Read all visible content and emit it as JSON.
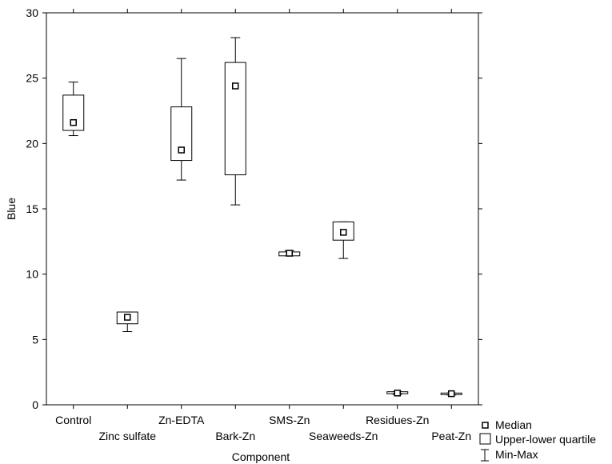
{
  "chart_data": {
    "type": "box",
    "xlabel": "Component",
    "ylabel": "Blue",
    "ylim": [
      0,
      30
    ],
    "yticks": [
      "0",
      "5",
      "10",
      "15",
      "20",
      "25",
      "30"
    ],
    "grid": false,
    "legend_position": "bottom-right",
    "categories": [
      "Control",
      "Zinc sulfate",
      "Zn-EDTA",
      "Bark-Zn",
      "SMS-Zn",
      "Seaweeds-Zn",
      "Residues-Zn",
      "Peat-Zn"
    ],
    "boxes": [
      {
        "category": "Control",
        "min": 20.6,
        "q1": 21.0,
        "median": 21.6,
        "q3": 23.7,
        "max": 24.7
      },
      {
        "category": "Zinc sulfate",
        "min": 5.6,
        "q1": 6.2,
        "median": 6.7,
        "q3": 7.1,
        "max": 7.1
      },
      {
        "category": "Zn-EDTA",
        "min": 17.2,
        "q1": 18.7,
        "median": 19.5,
        "q3": 22.8,
        "max": 26.5
      },
      {
        "category": "Bark-Zn",
        "min": 15.3,
        "q1": 17.6,
        "median": 24.4,
        "q3": 26.2,
        "max": 28.1
      },
      {
        "category": "SMS-Zn",
        "min": 11.4,
        "q1": 11.4,
        "median": 11.6,
        "q3": 11.7,
        "max": 11.8
      },
      {
        "category": "Seaweeds-Zn",
        "min": 11.2,
        "q1": 12.6,
        "median": 13.2,
        "q3": 14.0,
        "max": 14.0
      },
      {
        "category": "Residues-Zn",
        "min": 0.8,
        "q1": 0.85,
        "median": 0.9,
        "q3": 1.0,
        "max": 1.0
      },
      {
        "category": "Peat-Zn",
        "min": 0.75,
        "q1": 0.78,
        "median": 0.85,
        "q3": 0.9,
        "max": 0.9
      }
    ],
    "legend": {
      "median": "Median",
      "quartile": "Upper-lower quartile",
      "minmax": "Min-Max"
    }
  }
}
